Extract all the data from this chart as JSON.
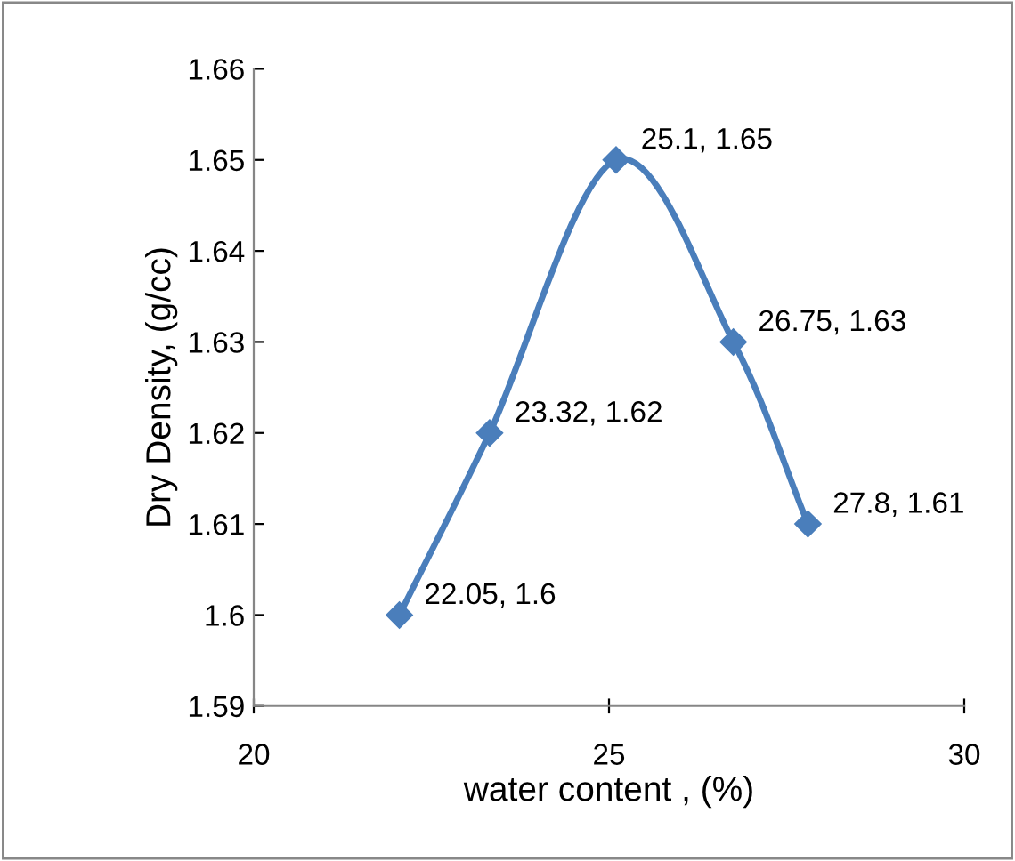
{
  "chart_data": {
    "type": "line",
    "xlabel": "water content , (%)",
    "ylabel": "Dry Density, (g/cc)",
    "series": [
      {
        "color": "#4a7ebb",
        "x": [
          22.05,
          23.32,
          25.1,
          26.75,
          27.8
        ],
        "values": [
          1.6,
          1.62,
          1.65,
          1.63,
          1.61
        ],
        "value_labels": [
          "22.05, 1.6",
          "23.32, 1.62",
          "25.1, 1.65",
          "26.75, 1.63",
          "27.8, 1.61"
        ]
      }
    ],
    "xlim": [
      20,
      30
    ],
    "xticks": [
      20,
      25,
      30
    ],
    "ylim": [
      1.59,
      1.66
    ],
    "yticks": [
      1.59,
      1.6,
      1.61,
      1.62,
      1.63,
      1.64,
      1.65,
      1.66
    ],
    "marker": "diamond",
    "line_style": "solid",
    "grid": false,
    "legend": false
  }
}
